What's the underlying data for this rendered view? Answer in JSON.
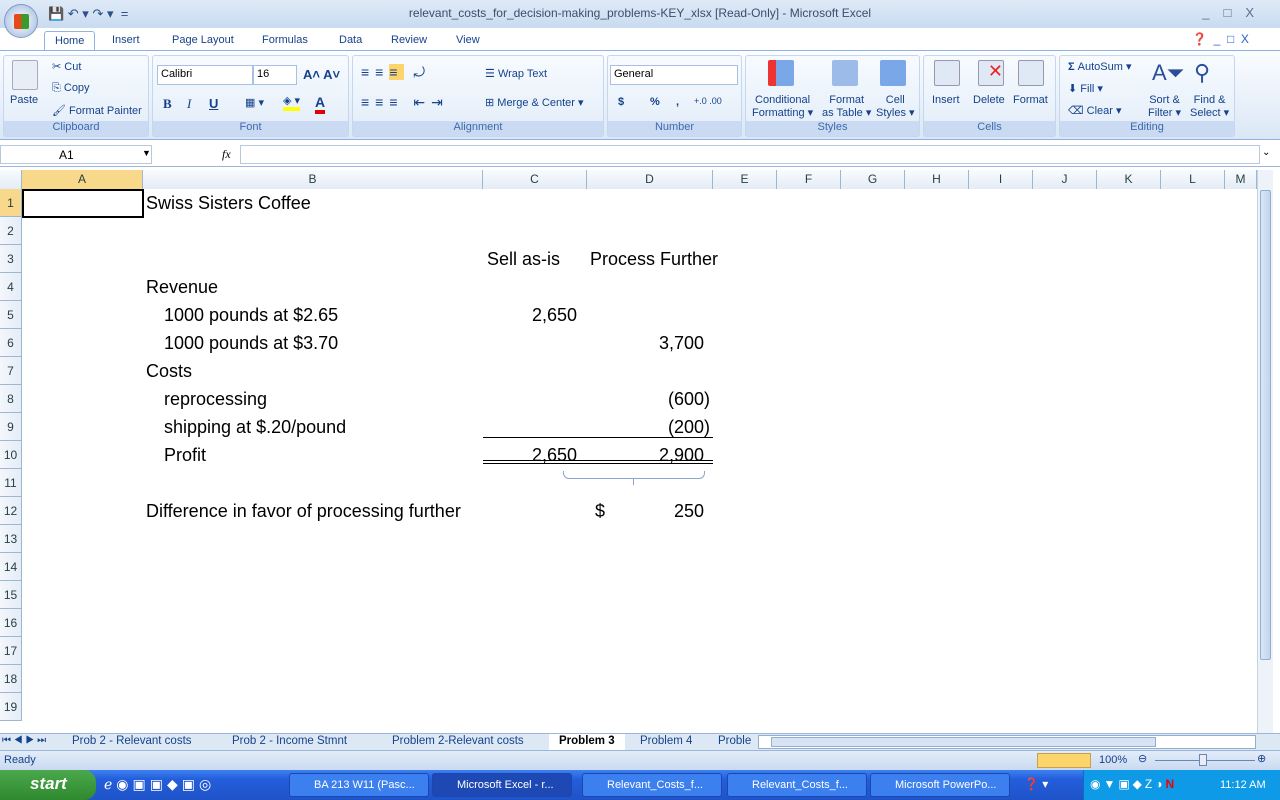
{
  "window": {
    "title": "relevant_costs_for_decision-making_problems-KEY_xlsx  [Read-Only] - Microsoft Excel"
  },
  "ribbon": {
    "tabs": [
      "Home",
      "Insert",
      "Page Layout",
      "Formulas",
      "Data",
      "Review",
      "View"
    ],
    "clipboard": {
      "label": "Clipboard",
      "paste": "Paste",
      "cut": "Cut",
      "copy": "Copy",
      "format_painter": "Format Painter"
    },
    "font": {
      "label": "Font",
      "name": "Calibri",
      "size": "16",
      "bold": "B",
      "italic": "I",
      "underline": "U"
    },
    "alignment": {
      "label": "Alignment",
      "wrap": "Wrap Text",
      "merge": "Merge & Center"
    },
    "number": {
      "label": "Number",
      "format": "General",
      "currency": "$",
      "percent": "%",
      "comma": ","
    },
    "styles": {
      "label": "Styles",
      "conditional": [
        "Conditional",
        "Formatting ▾"
      ],
      "format_table": [
        "Format",
        "as Table ▾"
      ],
      "cell_styles": [
        "Cell",
        "Styles ▾"
      ]
    },
    "cells": {
      "label": "Cells",
      "insert": "Insert",
      "delete": "Delete",
      "format": "Format"
    },
    "editing": {
      "label": "Editing",
      "autosum": "AutoSum ▾",
      "fill": "Fill ▾",
      "clear": "Clear ▾",
      "sort": [
        "Sort &",
        "Filter ▾"
      ],
      "find": [
        "Find &",
        "Select ▾"
      ]
    }
  },
  "formula_bar": {
    "name_box": "A1",
    "fx": "fx",
    "value": ""
  },
  "columns": [
    "A",
    "B",
    "C",
    "D",
    "E",
    "F",
    "G",
    "H",
    "I",
    "J",
    "K",
    "L",
    "M"
  ],
  "rows": [
    "1",
    "2",
    "3",
    "4",
    "5",
    "6",
    "7",
    "8",
    "9",
    "10",
    "11",
    "12",
    "13",
    "14",
    "15",
    "16",
    "17",
    "18",
    "19"
  ],
  "cells": {
    "b1": "Swiss Sisters Coffee",
    "c3": "Sell as-is",
    "d3": "Process Further",
    "b4": "Revenue",
    "b5": "1000 pounds at $2.65",
    "c5": "2,650",
    "b6": "1000 pounds at $3.70",
    "d6": "3,700",
    "b7": "Costs",
    "b8": "reprocessing",
    "d8": "(600)",
    "b9": "shipping at $.20/pound",
    "d9": "(200)",
    "b10": "Profit",
    "c10": "2,650",
    "d10": "2,900",
    "b12": "Difference in favor of processing further",
    "d12_sym": "$",
    "d12": "250"
  },
  "sheet_tabs": [
    "Prob 2 - Relevant costs",
    "Prob 2 - Income Stmnt",
    "Problem 2-Relevant costs",
    "Problem 3",
    "Problem 4",
    "Proble"
  ],
  "active_sheet": "Problem 3",
  "status": {
    "text": "Ready",
    "zoom": "100%"
  },
  "taskbar": {
    "start": "start",
    "items": [
      "BA 213 W11 (Pasc...",
      "Microsoft Excel - r...",
      "Relevant_Costs_f...",
      "Relevant_Costs_f...",
      "Microsoft PowerPo..."
    ],
    "clock": "11:12 AM"
  }
}
